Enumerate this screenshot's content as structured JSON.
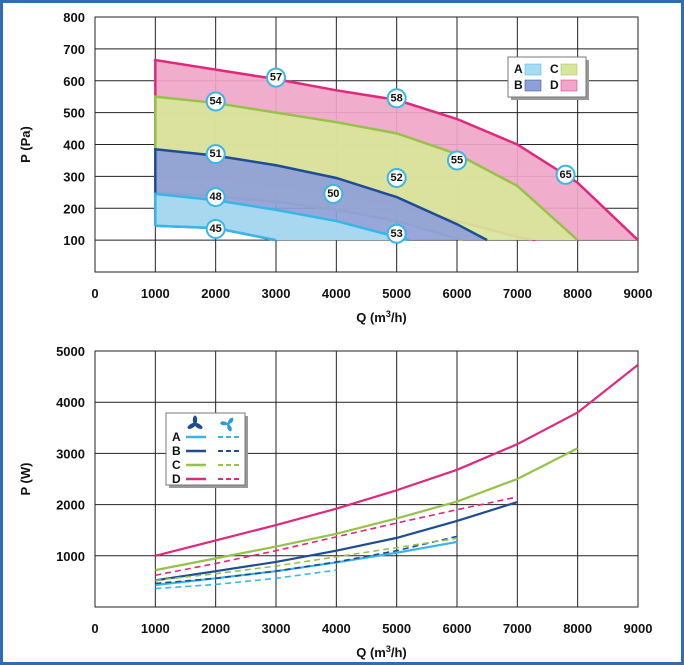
{
  "chart_data": [
    {
      "type": "area",
      "ylabel": "P (Pa)",
      "xlabel_main": "Q (m",
      "xlabel_sup": "3",
      "xlabel_tail": "/h)",
      "xlim": [
        0,
        9000
      ],
      "ylim": [
        0,
        800
      ],
      "xticks": [
        0,
        1000,
        2000,
        3000,
        4000,
        5000,
        6000,
        7000,
        8000,
        9000
      ],
      "yticks": [
        100,
        200,
        300,
        400,
        500,
        600,
        700,
        800
      ],
      "grid": true,
      "legend_position": "top-right",
      "colors": {
        "A": "#a8dcf2",
        "B": "#8f9fd8",
        "C": "#d8e69a",
        "D": "#f0a6c8"
      },
      "edge_colors": {
        "A": "#38b6e8",
        "B": "#1e4d96",
        "C": "#96c24a",
        "D": "#e0287e"
      },
      "regions": [
        {
          "name": "D",
          "max_curve": [
            [
              1000,
              665
            ],
            [
              2000,
              635
            ],
            [
              3000,
              605
            ],
            [
              4000,
              570
            ],
            [
              5000,
              540
            ],
            [
              6000,
              480
            ],
            [
              7000,
              400
            ],
            [
              8000,
              280
            ],
            [
              9000,
              100
            ]
          ],
          "min_curve": [
            [
              1000,
              300
            ],
            [
              2000,
              290
            ],
            [
              3000,
              270
            ],
            [
              4000,
              240
            ],
            [
              5000,
              210
            ],
            [
              6000,
              160
            ],
            [
              7000,
              110
            ],
            [
              7300,
              100
            ]
          ]
        },
        {
          "name": "C",
          "max_curve": [
            [
              1000,
              550
            ],
            [
              2000,
              530
            ],
            [
              3000,
              500
            ],
            [
              4000,
              470
            ],
            [
              5000,
              435
            ],
            [
              6000,
              370
            ],
            [
              7000,
              270
            ],
            [
              8000,
              100
            ]
          ],
          "min_curve": [
            [
              1000,
              250
            ],
            [
              2000,
              238
            ],
            [
              3000,
              220
            ],
            [
              4000,
              195
            ],
            [
              5000,
              160
            ],
            [
              6000,
              105
            ],
            [
              6100,
              100
            ]
          ]
        },
        {
          "name": "B",
          "max_curve": [
            [
              1000,
              385
            ],
            [
              2000,
              365
            ],
            [
              3000,
              335
            ],
            [
              4000,
              295
            ],
            [
              5000,
              235
            ],
            [
              6000,
              150
            ],
            [
              6500,
              100
            ]
          ],
          "min_curve": [
            [
              1000,
              145
            ],
            [
              2000,
              138
            ],
            [
              3000,
              100
            ]
          ]
        },
        {
          "name": "A",
          "max_curve": [
            [
              1000,
              245
            ],
            [
              2000,
              225
            ],
            [
              3000,
              195
            ],
            [
              4000,
              160
            ],
            [
              5000,
              110
            ],
            [
              5200,
              100
            ]
          ],
          "min_curve": [
            [
              1000,
              145
            ],
            [
              2000,
              138
            ],
            [
              3000,
              100
            ]
          ]
        }
      ],
      "annotations": [
        {
          "text": "57",
          "x": 3000,
          "y": 610
        },
        {
          "text": "54",
          "x": 2000,
          "y": 535
        },
        {
          "text": "58",
          "x": 5000,
          "y": 545
        },
        {
          "text": "51",
          "x": 2000,
          "y": 370
        },
        {
          "text": "55",
          "x": 6000,
          "y": 350
        },
        {
          "text": "65",
          "x": 7800,
          "y": 305
        },
        {
          "text": "52",
          "x": 5000,
          "y": 295
        },
        {
          "text": "48",
          "x": 2000,
          "y": 235
        },
        {
          "text": "50",
          "x": 3950,
          "y": 245
        },
        {
          "text": "45",
          "x": 2000,
          "y": 135
        },
        {
          "text": "53",
          "x": 5000,
          "y": 120
        }
      ],
      "legend": [
        {
          "label": "A",
          "series": "A"
        },
        {
          "label": "C",
          "series": "C"
        },
        {
          "label": "B",
          "series": "B"
        },
        {
          "label": "D",
          "series": "D"
        }
      ]
    },
    {
      "type": "line",
      "ylabel": "P (W)",
      "xlabel_main": "Q (m",
      "xlabel_sup": "3",
      "xlabel_tail": "/h)",
      "xlim": [
        0,
        9000
      ],
      "ylim": [
        0,
        5000
      ],
      "xticks": [
        0,
        1000,
        2000,
        3000,
        4000,
        5000,
        6000,
        7000,
        8000,
        9000
      ],
      "yticks": [
        1000,
        2000,
        3000,
        4000,
        5000
      ],
      "grid": true,
      "legend_position": "upper-left",
      "legend_labels": [
        "A",
        "B",
        "C",
        "D"
      ],
      "legend_columns": [
        "fan-blades-icon",
        "fan-blades-alt-icon"
      ],
      "series": [
        {
          "name": "A",
          "style": "solid",
          "color": "#38b6e8",
          "x": [
            1000,
            2000,
            3000,
            4000,
            5000,
            6000
          ],
          "values": [
            430,
            560,
            700,
            870,
            1060,
            1270
          ]
        },
        {
          "name": "A",
          "style": "dashed",
          "color": "#38b6e8",
          "x": [
            1000,
            2000,
            3000,
            4000
          ],
          "values": [
            360,
            440,
            560,
            720
          ]
        },
        {
          "name": "B",
          "style": "solid",
          "color": "#1e4d96",
          "x": [
            1000,
            2000,
            3000,
            4000,
            5000,
            6000,
            7000
          ],
          "values": [
            520,
            700,
            880,
            1100,
            1350,
            1680,
            2050
          ]
        },
        {
          "name": "B",
          "style": "dashed",
          "color": "#1e4d96",
          "x": [
            1000,
            2000,
            3000,
            4000,
            5000,
            6000
          ],
          "values": [
            460,
            560,
            700,
            880,
            1100,
            1380
          ]
        },
        {
          "name": "C",
          "style": "solid",
          "color": "#96c24a",
          "x": [
            1000,
            2000,
            3000,
            4000,
            5000,
            6000,
            7000,
            8000
          ],
          "values": [
            720,
            950,
            1180,
            1430,
            1730,
            2060,
            2500,
            3100
          ]
        },
        {
          "name": "C",
          "style": "dashed",
          "color": "#96c24a",
          "x": [
            1000,
            2000,
            3000,
            4000,
            5000,
            6000
          ],
          "values": [
            520,
            650,
            800,
            980,
            1160,
            1340
          ]
        },
        {
          "name": "D",
          "style": "solid",
          "color": "#e0287e",
          "x": [
            1000,
            2000,
            3000,
            4000,
            5000,
            6000,
            7000,
            8000,
            9000
          ],
          "values": [
            1000,
            1300,
            1600,
            1920,
            2280,
            2680,
            3180,
            3800,
            4730
          ]
        },
        {
          "name": "D",
          "style": "dashed",
          "color": "#e0287e",
          "x": [
            1000,
            2000,
            3000,
            4000,
            5000,
            6000,
            7000
          ],
          "values": [
            620,
            850,
            1100,
            1370,
            1640,
            1900,
            2150
          ]
        }
      ]
    }
  ]
}
